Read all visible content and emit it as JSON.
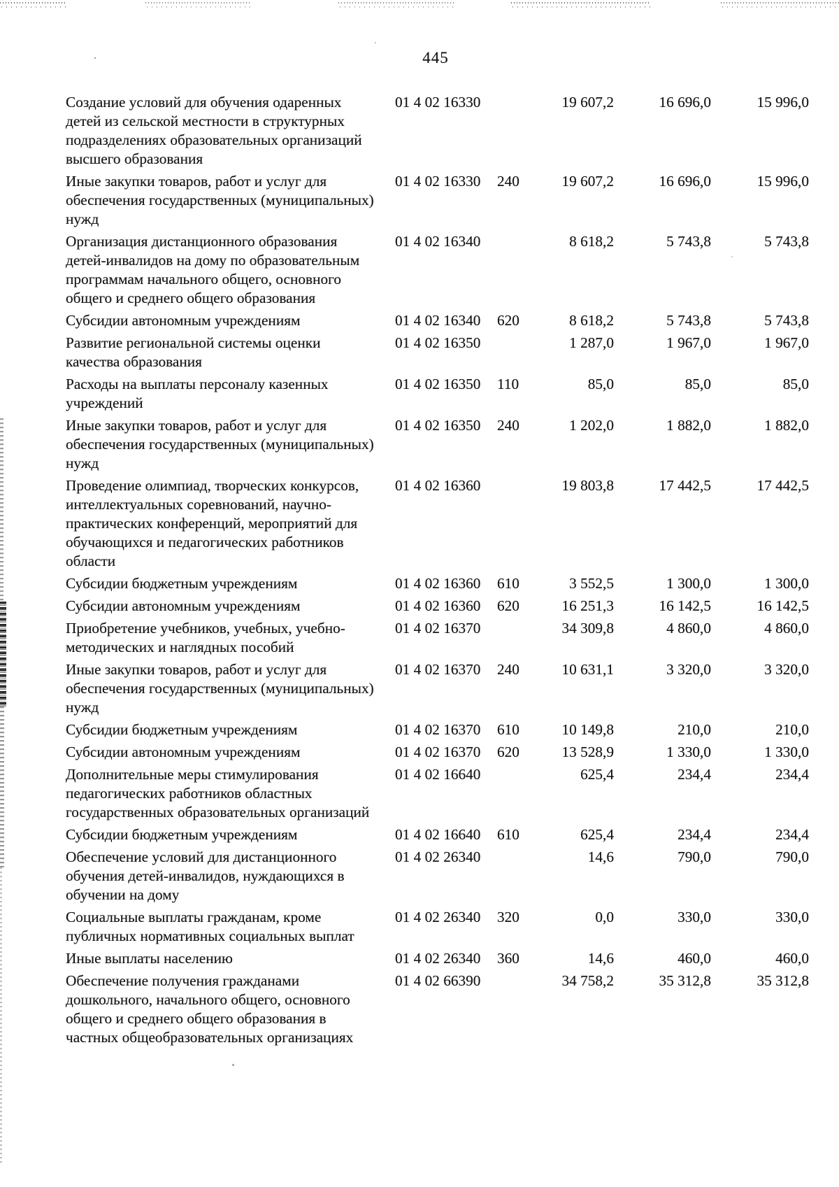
{
  "page": {
    "number": "445",
    "ink_color": "#161616",
    "paper_color": "#ffffff"
  },
  "table": {
    "rows": [
      {
        "name": "Создание условий для обучения одаренных детей из сельской местности в структурных подразделениях образовательных организаций высшего образования",
        "code": "01 4 02 16330",
        "expense_type": "",
        "amounts": [
          "19 607,2",
          "16 696,0",
          "15 996,0"
        ]
      },
      {
        "name": "Иные закупки товаров, работ и услуг для обеспечения государственных (муниципальных) нужд",
        "code": "01 4 02 16330",
        "expense_type": "240",
        "amounts": [
          "19 607,2",
          "16 696,0",
          "15 996,0"
        ]
      },
      {
        "name": "Организация дистанционного образования детей-инвалидов на дому по образовательным программам начального общего, основного общего и среднего общего образования",
        "code": "01 4 02 16340",
        "expense_type": "",
        "amounts": [
          "8 618,2",
          "5 743,8",
          "5 743,8"
        ]
      },
      {
        "name": "Субсидии автономным учреждениям",
        "code": "01 4 02 16340",
        "expense_type": "620",
        "amounts": [
          "8 618,2",
          "5 743,8",
          "5 743,8"
        ]
      },
      {
        "name": "Развитие региональной системы оценки качества образования",
        "code": "01 4 02 16350",
        "expense_type": "",
        "amounts": [
          "1 287,0",
          "1 967,0",
          "1 967,0"
        ]
      },
      {
        "name": "Расходы на выплаты персоналу казенных учреждений",
        "code": "01 4 02 16350",
        "expense_type": "110",
        "amounts": [
          "85,0",
          "85,0",
          "85,0"
        ]
      },
      {
        "name": "Иные закупки товаров, работ и услуг для обеспечения государственных (муниципальных) нужд",
        "code": "01 4 02 16350",
        "expense_type": "240",
        "amounts": [
          "1 202,0",
          "1 882,0",
          "1 882,0"
        ]
      },
      {
        "name": "Проведение олимпиад, творческих конкурсов, интеллектуальных соревнований, научно-практических конференций, мероприятий для обучающихся и педагогических работников области",
        "code": "01 4 02 16360",
        "expense_type": "",
        "amounts": [
          "19 803,8",
          "17 442,5",
          "17 442,5"
        ]
      },
      {
        "name": "Субсидии бюджетным учреждениям",
        "code": "01 4 02 16360",
        "expense_type": "610",
        "amounts": [
          "3 552,5",
          "1 300,0",
          "1 300,0"
        ]
      },
      {
        "name": "Субсидии автономным учреждениям",
        "code": "01 4 02 16360",
        "expense_type": "620",
        "amounts": [
          "16 251,3",
          "16 142,5",
          "16 142,5"
        ]
      },
      {
        "name": "Приобретение учебников, учебных, учебно-методических и наглядных пособий",
        "code": "01 4 02 16370",
        "expense_type": "",
        "amounts": [
          "34 309,8",
          "4 860,0",
          "4 860,0"
        ]
      },
      {
        "name": "Иные закупки товаров, работ и услуг для обеспечения государственных (муниципальных) нужд",
        "code": "01 4 02 16370",
        "expense_type": "240",
        "amounts": [
          "10 631,1",
          "3 320,0",
          "3 320,0"
        ]
      },
      {
        "name": "Субсидии бюджетным учреждениям",
        "code": "01 4 02 16370",
        "expense_type": "610",
        "amounts": [
          "10 149,8",
          "210,0",
          "210,0"
        ]
      },
      {
        "name": "Субсидии автономным учреждениям",
        "code": "01 4 02 16370",
        "expense_type": "620",
        "amounts": [
          "13 528,9",
          "1 330,0",
          "1 330,0"
        ]
      },
      {
        "name": "Дополнительные меры стимулирования педагогических работников областных государственных образовательных организаций",
        "code": "01 4 02 16640",
        "expense_type": "",
        "amounts": [
          "625,4",
          "234,4",
          "234,4"
        ]
      },
      {
        "name": "Субсидии бюджетным учреждениям",
        "code": "01 4 02 16640",
        "expense_type": "610",
        "amounts": [
          "625,4",
          "234,4",
          "234,4"
        ]
      },
      {
        "name": "Обеспечение условий для дистанционного обучения детей-инвалидов, нуждающихся в обучении на дому",
        "code": "01 4 02 26340",
        "expense_type": "",
        "amounts": [
          "14,6",
          "790,0",
          "790,0"
        ]
      },
      {
        "name": "Социальные выплаты гражданам, кроме публичных нормативных социальных выплат",
        "code": "01 4 02 26340",
        "expense_type": "320",
        "amounts": [
          "0,0",
          "330,0",
          "330,0"
        ]
      },
      {
        "name": "Иные выплаты населению",
        "code": "01 4 02 26340",
        "expense_type": "360",
        "amounts": [
          "14,6",
          "460,0",
          "460,0"
        ]
      },
      {
        "name": "Обеспечение получения гражданами дошкольного, начального общего, основного общего и среднего общего образования в частных общеобразовательных организациях",
        "code": "01 4 02 66390",
        "expense_type": "",
        "amounts": [
          "34 758,2",
          "35 312,8",
          "35 312,8"
        ]
      }
    ]
  }
}
